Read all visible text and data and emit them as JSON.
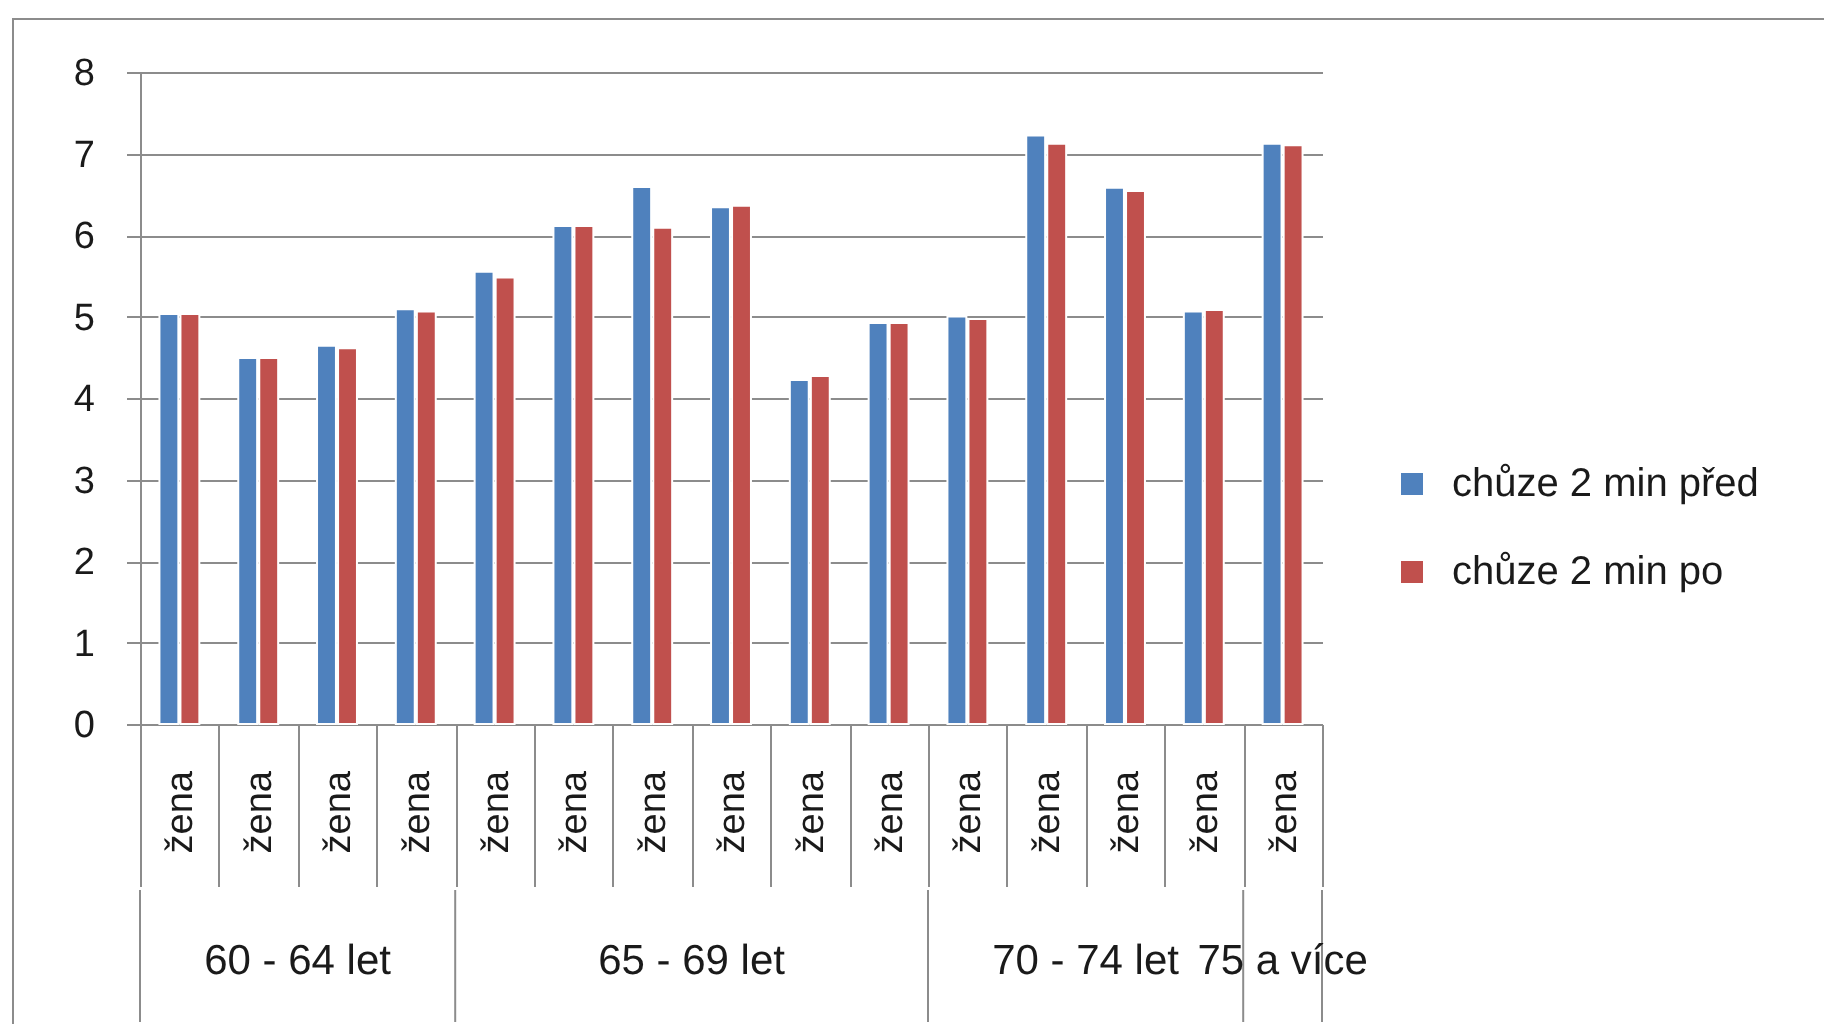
{
  "chart_data": {
    "type": "bar",
    "categories": [
      "žena",
      "žena",
      "žena",
      "žena",
      "žena",
      "žena",
      "žena",
      "žena",
      "žena",
      "žena",
      "žena",
      "žena",
      "žena",
      "žena",
      "žena"
    ],
    "series": [
      {
        "name": "chůze 2 min před",
        "color": "#4f81bd",
        "values": [
          5.03,
          4.49,
          4.64,
          5.09,
          5.55,
          6.11,
          6.59,
          6.34,
          4.22,
          4.92,
          5.0,
          7.22,
          6.58,
          5.06,
          7.12
        ]
      },
      {
        "name": "chůze 2 min po",
        "color": "#c0504d",
        "values": [
          5.03,
          4.49,
          4.61,
          5.06,
          5.48,
          6.11,
          6.09,
          6.36,
          4.27,
          4.92,
          4.97,
          7.12,
          6.54,
          5.08,
          7.1
        ]
      }
    ],
    "ylim": [
      0,
      8
    ],
    "yticks": [
      0,
      1,
      2,
      3,
      4,
      5,
      6,
      7,
      8
    ],
    "grid": "y",
    "legend": "right",
    "annotations": [
      "60 - 64 let",
      "65 - 69 let",
      "70 - 74 let",
      "75 a více"
    ]
  }
}
